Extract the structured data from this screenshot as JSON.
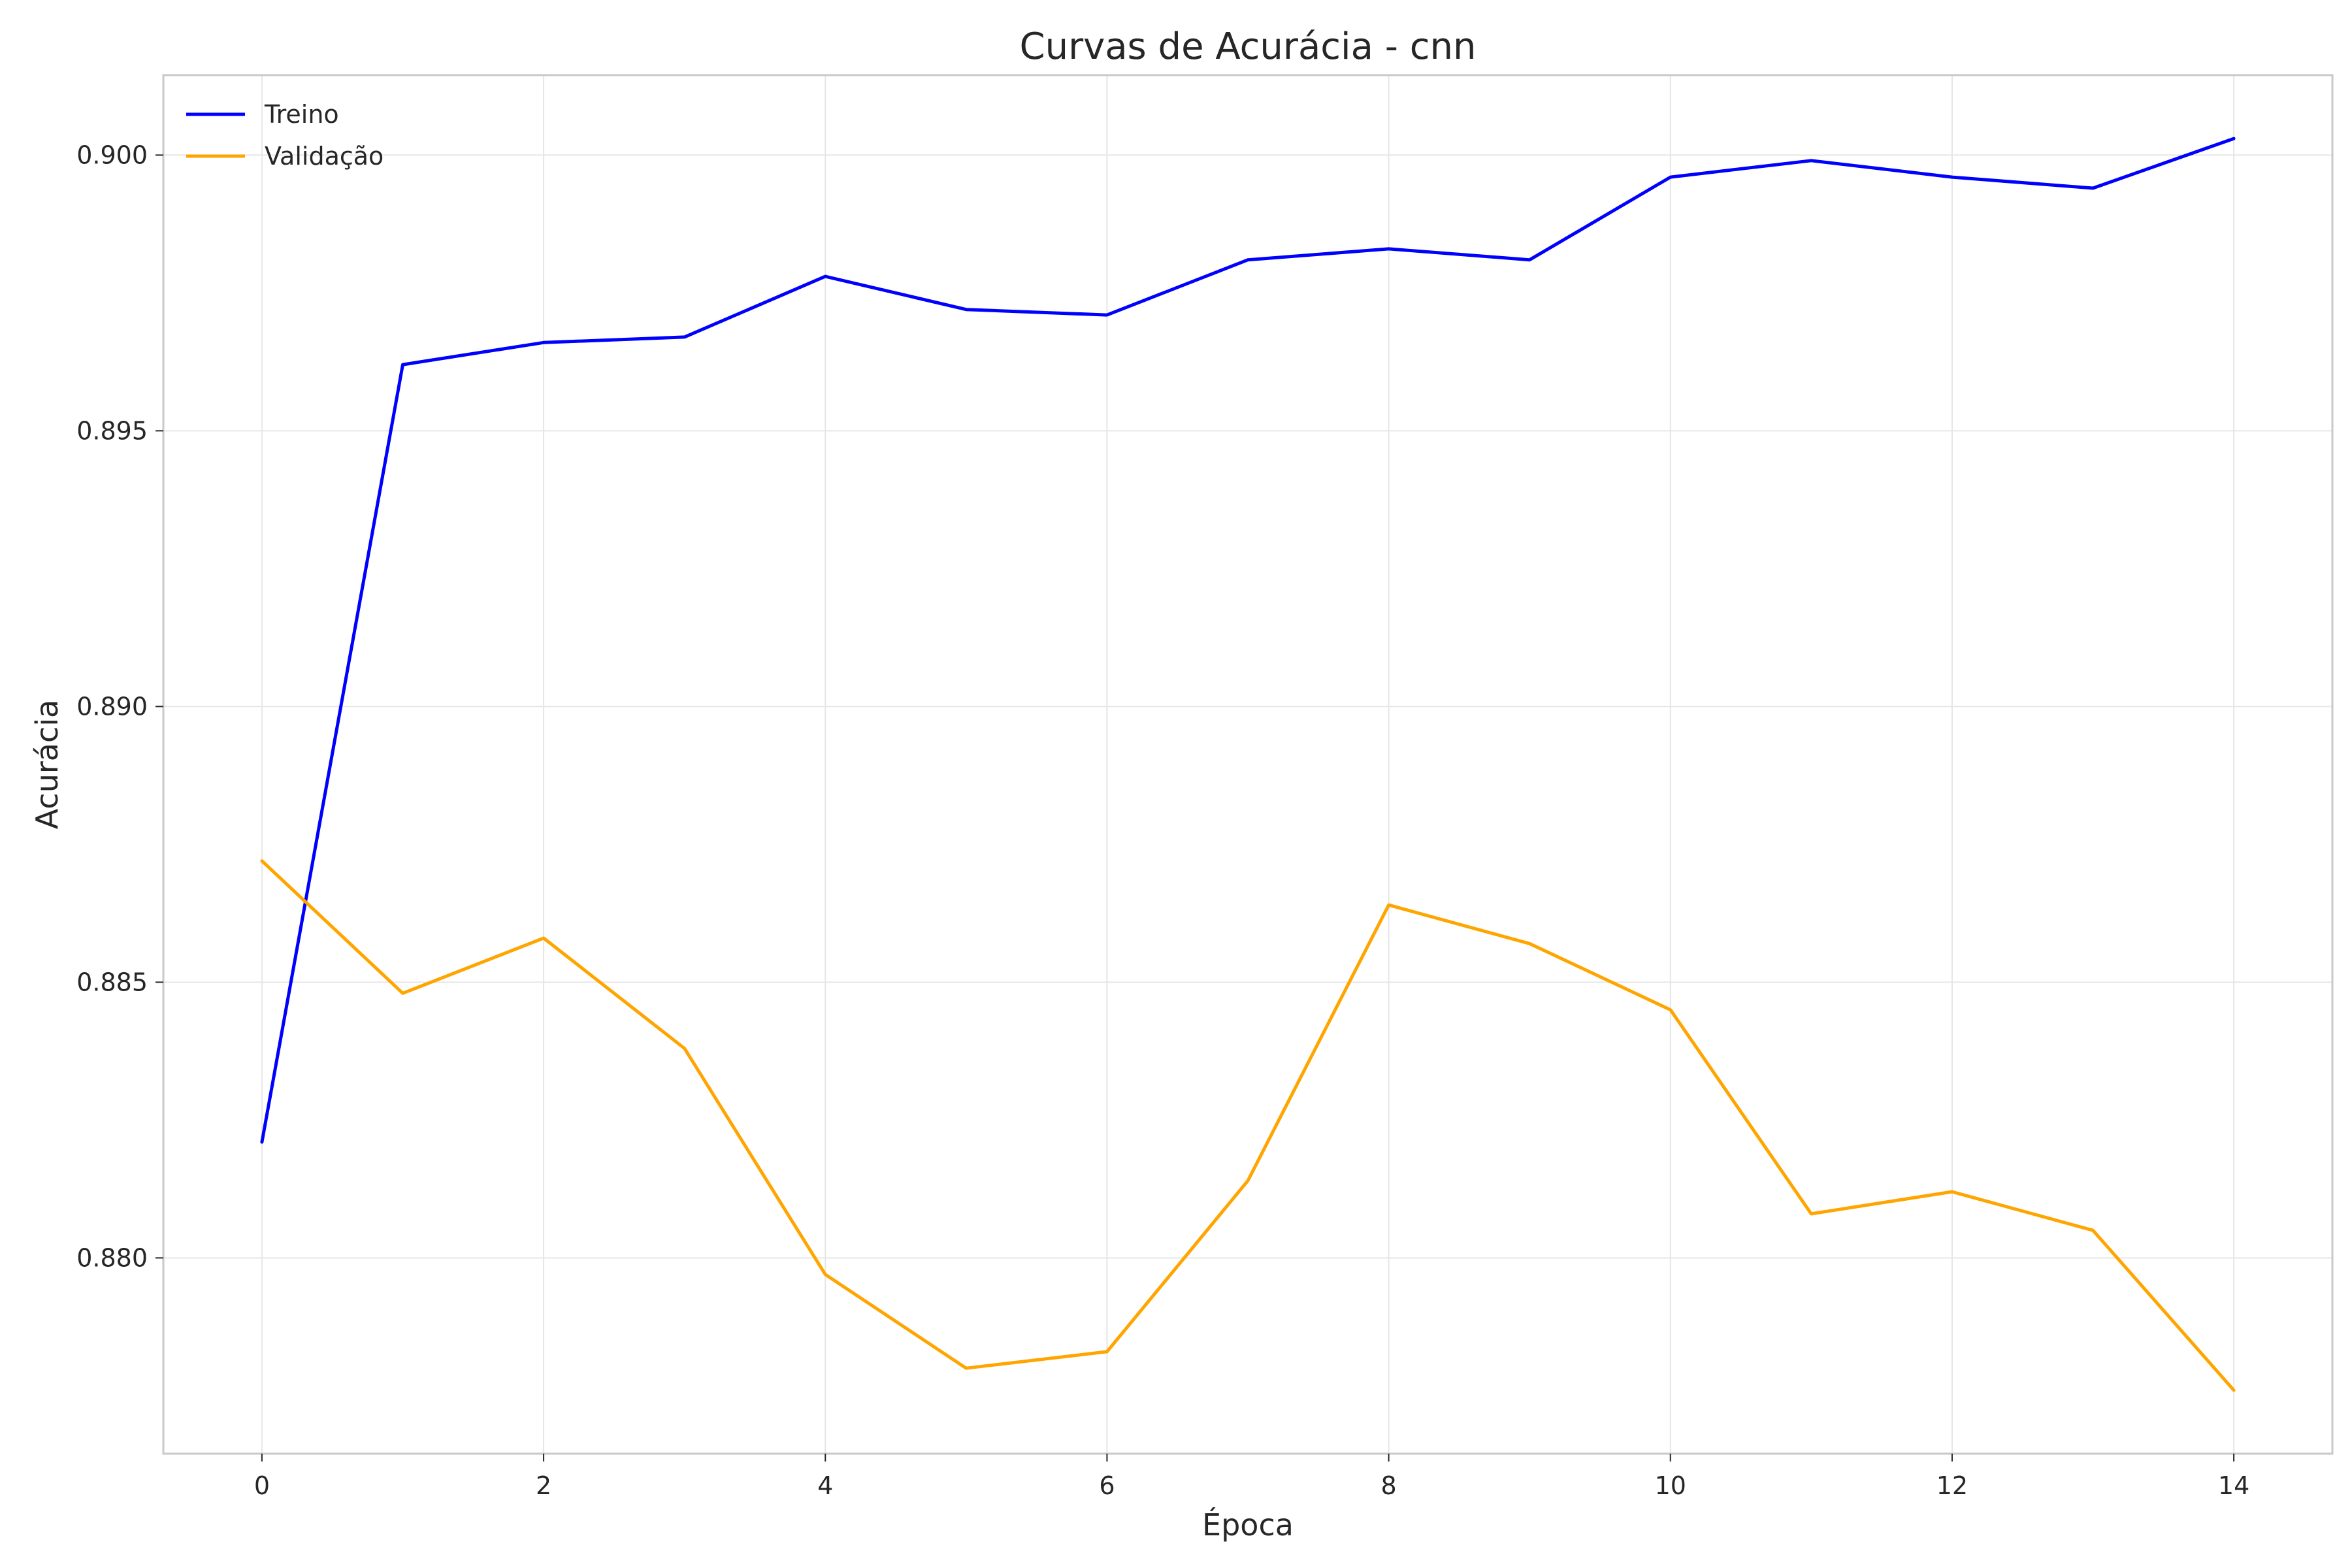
{
  "chart_data": {
    "type": "line",
    "title": "Curvas de Acurácia - cnn",
    "xlabel": "Época",
    "ylabel": "Acurácia",
    "x": [
      0,
      1,
      2,
      3,
      4,
      5,
      6,
      7,
      8,
      9,
      10,
      11,
      12,
      13,
      14
    ],
    "xlim": [
      -0.7,
      14.7
    ],
    "ylim": [
      0.87645,
      0.90145
    ],
    "xticks": [
      0,
      2,
      4,
      6,
      8,
      10,
      12,
      14
    ],
    "xtick_labels": [
      "0",
      "2",
      "4",
      "6",
      "8",
      "10",
      "12",
      "14"
    ],
    "yticks": [
      0.88,
      0.885,
      0.89,
      0.895,
      0.9
    ],
    "ytick_labels": [
      "0.880",
      "0.885",
      "0.890",
      "0.895",
      "0.900"
    ],
    "grid": true,
    "legend_position": "top-left",
    "series": [
      {
        "name": "Treino",
        "color": "#0000ff",
        "values": [
          0.8821,
          0.8962,
          0.8966,
          0.8967,
          0.8978,
          0.8972,
          0.8971,
          0.8981,
          0.8983,
          0.8981,
          0.8996,
          0.8999,
          0.8996,
          0.8994,
          0.9003
        ]
      },
      {
        "name": "Validação",
        "color": "#ffa500",
        "values": [
          0.8872,
          0.8848,
          0.8858,
          0.8838,
          0.8797,
          0.878,
          0.8783,
          0.8814,
          0.8864,
          0.8857,
          0.8845,
          0.8808,
          0.8812,
          0.8805,
          0.8776
        ]
      }
    ]
  }
}
